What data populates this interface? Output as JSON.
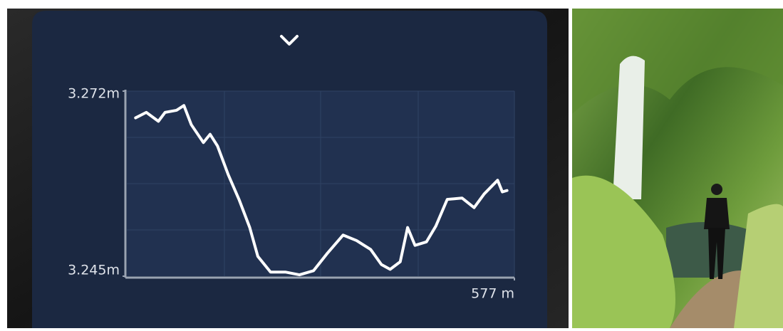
{
  "chart_data": {
    "type": "line",
    "x": [
      13,
      29,
      47,
      57,
      74,
      85,
      96,
      114,
      124,
      135,
      151,
      167,
      183,
      195,
      214,
      236,
      257,
      278,
      299,
      322,
      342,
      363,
      379,
      392,
      407,
      418,
      429,
      446,
      460,
      477,
      499,
      517,
      532,
      552,
      559,
      566
    ],
    "series": [
      {
        "color": "#ffffff",
        "values": [
          3268.1,
          3268.9,
          3267.6,
          3268.9,
          3269.2,
          3269.9,
          3267.1,
          3264.5,
          3265.7,
          3264.0,
          3259.8,
          3256.2,
          3252.1,
          3247.9,
          3245.6,
          3245.6,
          3245.2,
          3245.8,
          3248.4,
          3251.0,
          3250.2,
          3248.9,
          3246.7,
          3246.0,
          3247.1,
          3252.1,
          3249.5,
          3250.0,
          3252.3,
          3256.2,
          3256.4,
          3255.0,
          3257.0,
          3259.0,
          3257.3,
          3257.5
        ]
      }
    ],
    "xlim": [
      0,
      577
    ],
    "xticks": [
      {
        "value": 577,
        "label": "577 m"
      }
    ],
    "ylim": [
      3245,
      3272
    ],
    "yticks": [
      {
        "value": 3245,
        "label": "3.245m"
      },
      {
        "value": 3272,
        "label": "3.272m"
      }
    ]
  }
}
